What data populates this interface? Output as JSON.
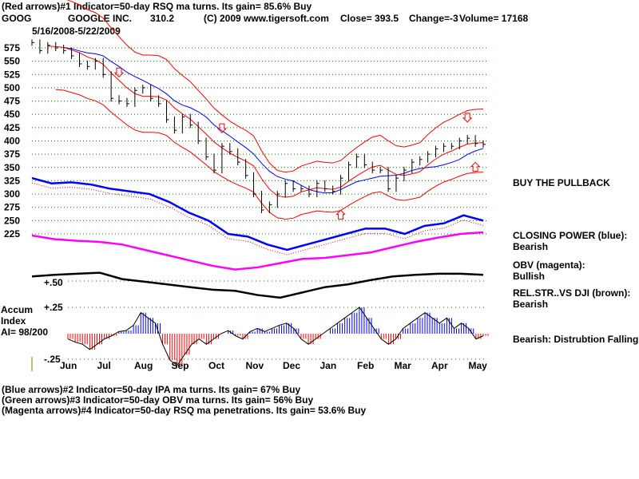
{
  "header": {
    "line1": "(Red arrows)#1 Indicator=50-day RSQ ma turns. Its gain= 85.6% Buy",
    "ticker": "GOOG",
    "company": "GOOGLE INC.",
    "value": "310.2",
    "copyright": "(C) 2009 www.tigersoft.com",
    "close": "Close=  393.5",
    "change": "Change=-3",
    "volume": "Volume= 17168",
    "date_range": "5/16/2008-5/22/2009"
  },
  "side_notes": {
    "buy": "BUY THE PULLBACK",
    "cp_label": "CLOSING POWER (blue):",
    "cp_value": "Bearish",
    "obv_label": "OBV (magenta):",
    "obv_value": "Bullish",
    "rs_label": "REL.STR..VS DJI (brown):",
    "rs_value": "Bearish",
    "ai_summary": "Bearish: Distrubtion Falling."
  },
  "accum": {
    "title1": "Accum",
    "title2": "Index",
    "ai": "AI= 98/200",
    "plus50": "+.50",
    "plus25": "+.25",
    "minus25": "-.25"
  },
  "footer": [
    "(Blue arrows)#2 Indicator=50-day IPA ma turns. Its gain= 67% Buy",
    "(Green arrows)#3 Indicator=50-day OBV ma turns. Its gain= 56% Buy",
    "(Magenta arrows)#4 Indicator=50-day RSQ ma penetrations. Its gain= 53.6% Buy"
  ],
  "colors": {
    "grid": "#008000",
    "price": "#000000",
    "ma_short": "#ff0000",
    "ma_long": "#0000ff",
    "cp": "#0000ff",
    "obv": "#ff00ff",
    "rs": "#000000",
    "ai_pos": "#0000ff",
    "ai_neg": "#ff0000"
  },
  "chart_data": {
    "type": "line",
    "title": "GOOG 5/16/2008-5/22/2009",
    "ylim": [
      225,
      575
    ],
    "y_ticks": [
      575,
      550,
      525,
      500,
      475,
      450,
      425,
      400,
      375,
      350,
      325,
      300,
      275,
      250,
      225
    ],
    "x_ticks": [
      "Jun",
      "Jul",
      "Aug",
      "Sep",
      "Oct",
      "Nov",
      "Dec",
      "Jan",
      "Feb",
      "Mar",
      "Apr",
      "May"
    ],
    "close": [
      585,
      570,
      580,
      575,
      570,
      560,
      545,
      540,
      550,
      525,
      480,
      475,
      470,
      495,
      500,
      480,
      470,
      440,
      420,
      445,
      430,
      400,
      370,
      345,
      390,
      380,
      360,
      335,
      300,
      270,
      280,
      300,
      320,
      310,
      310,
      300,
      320,
      310,
      305,
      330,
      355,
      370,
      355,
      345,
      345,
      310,
      330,
      345,
      360,
      365,
      375,
      385,
      390,
      390,
      400,
      405,
      395,
      393.5
    ],
    "closing_power": [
      330,
      320,
      322,
      318,
      310,
      305,
      300,
      285,
      265,
      250,
      225,
      220,
      205,
      195,
      205,
      215,
      225,
      235,
      235,
      225,
      240,
      245,
      260,
      250
    ],
    "obv": [
      222,
      215,
      212,
      210,
      205,
      195,
      185,
      175,
      165,
      158,
      162,
      170,
      178,
      180,
      185,
      190,
      200,
      210,
      218,
      225,
      228
    ],
    "rel_strength": [
      145,
      148,
      150,
      152,
      140,
      135,
      130,
      125,
      120,
      118,
      110,
      105,
      115,
      125,
      130,
      138,
      145,
      148,
      150,
      150,
      148
    ],
    "accum_index": [
      -0.05,
      -0.08,
      -0.1,
      -0.15,
      -0.1,
      -0.05,
      -0.02,
      0.02,
      0.03,
      0.08,
      0.2,
      0.15,
      0.1,
      -0.1,
      -0.25,
      -0.3,
      -0.2,
      -0.1,
      -0.05,
      -0.1,
      -0.05,
      0,
      0.03,
      -0.02,
      -0.05,
      0.02,
      0.05,
      0.02,
      0.05,
      0.08,
      0.1,
      0.05,
      -0.05,
      -0.1,
      -0.05,
      0,
      0.05,
      0.1,
      0.15,
      0.2,
      0.25,
      0.15,
      0.05,
      -0.05,
      -0.1,
      -0.05,
      0.05,
      0.1,
      0.15,
      0.2,
      0.15,
      0.1,
      0.15,
      0.05,
      0.1,
      0.05,
      -0.05,
      -0.02
    ],
    "arrows": [
      {
        "dir": "down",
        "index": 11,
        "price": 525
      },
      {
        "dir": "down",
        "index": 24,
        "price": 420
      },
      {
        "dir": "down",
        "index": 55,
        "price": 440
      },
      {
        "dir": "up",
        "index": 39,
        "price": 265
      },
      {
        "dir": "up",
        "index": 56,
        "price": 355
      }
    ]
  }
}
